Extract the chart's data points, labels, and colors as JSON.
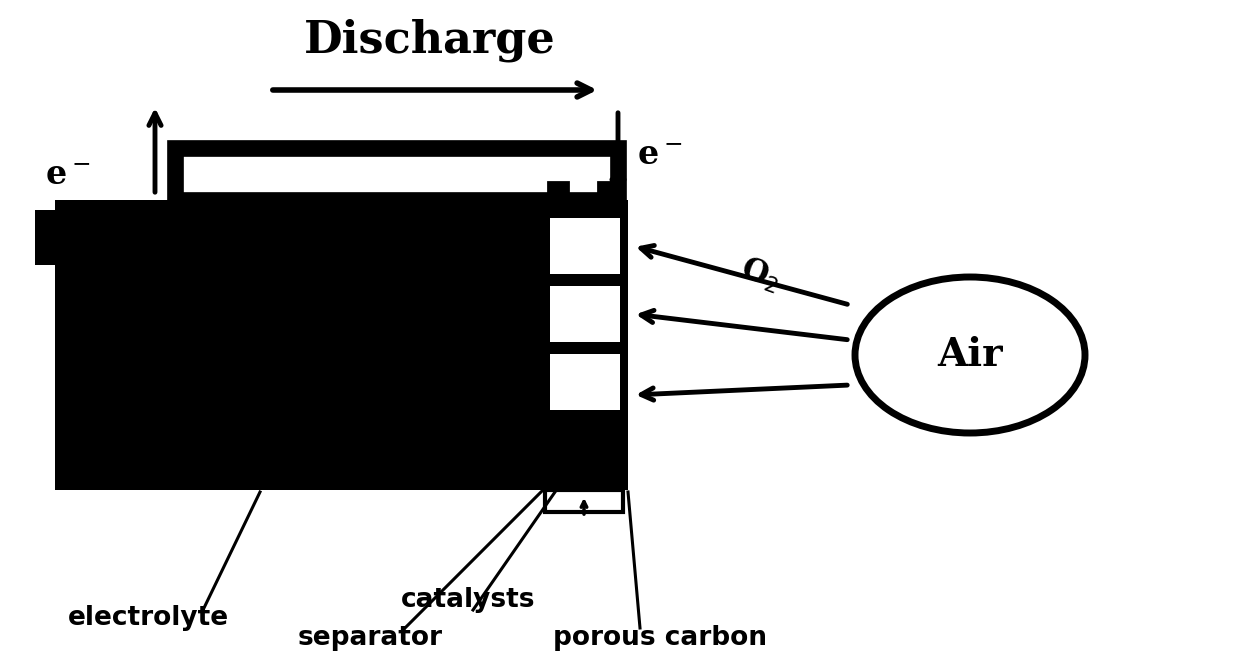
{
  "bg_color": "#ffffff",
  "black": "#000000",
  "white": "#ffffff",
  "fig_width": 12.39,
  "fig_height": 6.68,
  "dpi": 100,
  "title": "Discharge",
  "label_electrolyte": "electrolyte",
  "label_separator": "separator",
  "label_catalysts": "catalysts",
  "label_porous": "porous carbon",
  "label_air": "Air",
  "label_o2": "O$_2$",
  "label_eminus": "e$^-$"
}
